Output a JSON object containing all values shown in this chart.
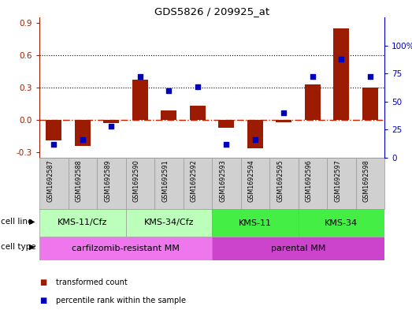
{
  "title": "GDS5826 / 209925_at",
  "samples": [
    "GSM1692587",
    "GSM1692588",
    "GSM1692589",
    "GSM1692590",
    "GSM1692591",
    "GSM1692592",
    "GSM1692593",
    "GSM1692594",
    "GSM1692595",
    "GSM1692596",
    "GSM1692597",
    "GSM1692598"
  ],
  "transformed_count": [
    -0.19,
    -0.24,
    -0.03,
    0.37,
    0.09,
    0.13,
    -0.07,
    -0.26,
    -0.02,
    0.33,
    0.85,
    0.3
  ],
  "percentile_rank_pct": [
    12,
    16,
    28,
    72,
    60,
    63,
    12,
    16,
    40,
    72,
    88,
    72
  ],
  "ylim_left": [
    -0.35,
    0.95
  ],
  "yticks_left": [
    -0.3,
    0.0,
    0.3,
    0.6,
    0.9
  ],
  "ytick_right_vals": [
    0,
    25,
    50,
    75,
    100
  ],
  "ytick_right_labels": [
    "0",
    "25",
    "50",
    "75",
    "100%"
  ],
  "bar_color": "#9B1C00",
  "dot_color": "#0000BB",
  "zero_line_color": "#CC2200",
  "hgrid_at": [
    0.3,
    0.6
  ],
  "bar_width": 0.55,
  "dot_size": 22,
  "cell_line_groups": [
    {
      "label": "KMS-11/Cfz",
      "start": 0,
      "end": 3,
      "color": "#BBFFBB"
    },
    {
      "label": "KMS-34/Cfz",
      "start": 3,
      "end": 6,
      "color": "#BBFFBB"
    },
    {
      "label": "KMS-11",
      "start": 6,
      "end": 9,
      "color": "#44EE44"
    },
    {
      "label": "KMS-34",
      "start": 9,
      "end": 12,
      "color": "#44EE44"
    }
  ],
  "cell_type_groups": [
    {
      "label": "carfilzomib-resistant MM",
      "start": 0,
      "end": 6,
      "color": "#EE77EE"
    },
    {
      "label": "parental MM",
      "start": 6,
      "end": 12,
      "color": "#CC44CC"
    }
  ],
  "sample_bg_color": "#D0D0D0",
  "sample_edge_color": "#999999",
  "legend_items": [
    {
      "color": "#9B1C00",
      "label": "transformed count"
    },
    {
      "color": "#0000BB",
      "label": "percentile rank within the sample"
    }
  ]
}
